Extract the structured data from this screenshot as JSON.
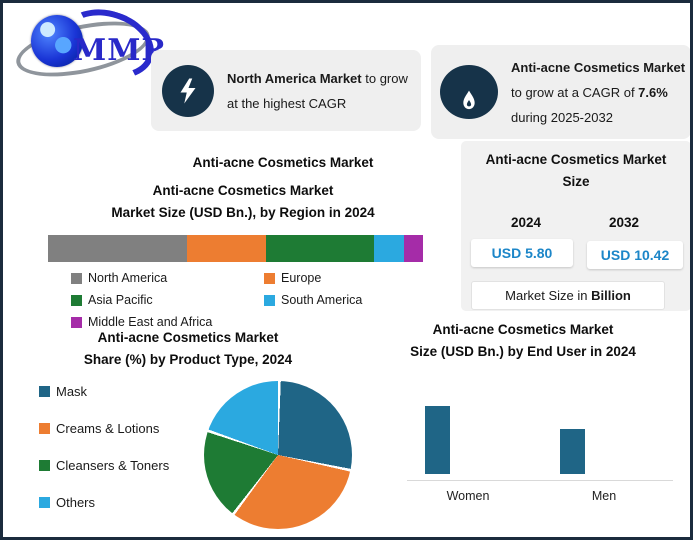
{
  "colors": {
    "frame_border": "#1B2B3D",
    "callout_bg": "#EFEFEF",
    "icon_badge": "#163349",
    "panel_bg": "#F1F1F1",
    "value_text": "#1C86C8",
    "axis_line": "#D9D9D9",
    "logo_blue": "#2929C8"
  },
  "logo": {
    "text": "MMR"
  },
  "callouts": [
    {
      "icon": "lightning-icon",
      "bold": "North America Market",
      "rest": " to grow at the highest CAGR"
    },
    {
      "icon": "flame-icon",
      "bold1": "Anti-acne Cosmetics Market",
      "mid": " to grow at a CAGR of ",
      "bold2": "7.6%",
      "rest": " during 2025-2032"
    }
  ],
  "center_title": "Anti-acne Cosmetics Market",
  "region_chart": {
    "title_line1": "Anti-acne Cosmetics Market",
    "title_line2": "Market Size (USD Bn.), by Region in 2024"
  },
  "market_size_panel": {
    "title_line1": "Anti-acne Cosmetics Market",
    "title_line2": "Size",
    "years": [
      "2024",
      "2032"
    ],
    "values": [
      "USD 5.80",
      "USD 10.42"
    ],
    "note_prefix": "Market Size in ",
    "note_bold": "Billion"
  },
  "pie_section": {
    "title_line1": "Anti-acne Cosmetics Market",
    "title_line2": "Share (%) by Product Type, 2024"
  },
  "enduser_section": {
    "title_line1": "Anti-acne Cosmetics Market",
    "title_line2": "Size (USD Bn.) by End User in 2024"
  },
  "chart_data": [
    {
      "type": "bar",
      "subtype": "horizontal-stacked",
      "title": "Anti-acne Cosmetics Market Market Size (USD Bn.), by Region in 2024",
      "categories": [
        "North America",
        "Europe",
        "Asia Pacific",
        "South America",
        "Middle East and Africa"
      ],
      "values_pct_width": [
        37,
        21,
        29,
        8,
        5
      ],
      "colors": [
        "#808080",
        "#ED7D31",
        "#1E7B34",
        "#2BA9E0",
        "#A52CA8"
      ],
      "legend_position": "below",
      "data_labels": false
    },
    {
      "type": "pie",
      "title": "Anti-acne Cosmetics Market Share (%) by Product Type, 2024",
      "categories": [
        "Mask",
        "Creams & Lotions",
        "Cleansers & Toners",
        "Others"
      ],
      "values_pct": [
        28,
        32,
        20,
        20
      ],
      "colors": [
        "#1F6586",
        "#ED7D31",
        "#1E7B34",
        "#2BA9E0"
      ],
      "start_angle_deg": 0,
      "direction": "clockwise",
      "legend_position": "left",
      "data_labels": false
    },
    {
      "type": "bar",
      "title": "Anti-acne Cosmetics Market Size (USD Bn.) by End User in 2024",
      "categories": [
        "Women",
        "Men"
      ],
      "values": [
        3.5,
        2.3
      ],
      "ylim": [
        0,
        4
      ],
      "bar_color": "#1F6586",
      "grid": false,
      "data_labels": false
    }
  ]
}
